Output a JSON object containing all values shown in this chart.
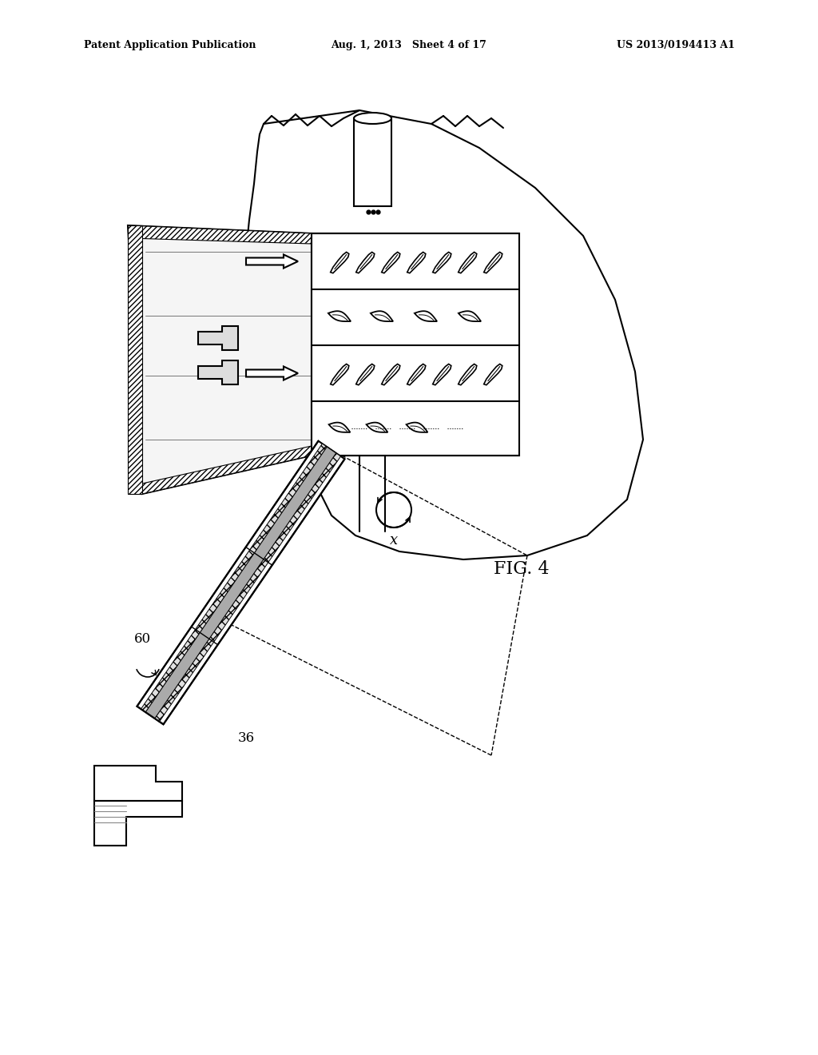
{
  "title_left": "Patent Application Publication",
  "title_mid": "Aug. 1, 2013   Sheet 4 of 17",
  "title_right": "US 2013/0194413 A1",
  "fig_label": "FIG. 4",
  "label_60": "60",
  "label_36": "36",
  "bg_color": "#ffffff",
  "line_color": "#000000"
}
